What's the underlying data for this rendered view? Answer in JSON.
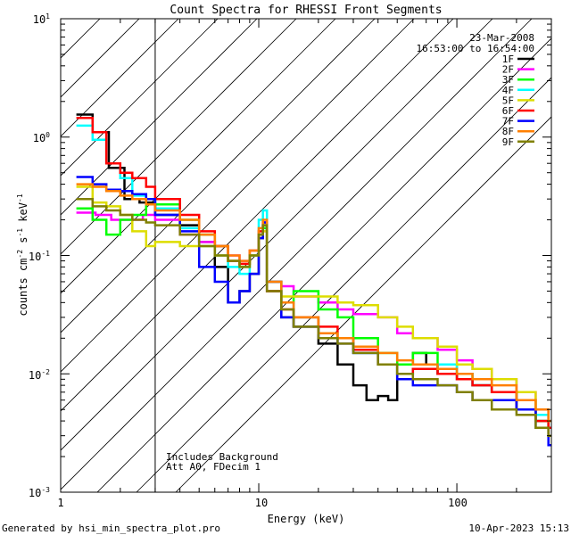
{
  "chart_data": {
    "type": "line",
    "title": "Count Spectra for RHESSI Front Segments",
    "xlabel": "Energy (keV)",
    "ylabel": "counts cm-2 s-1 keV-1",
    "ylabel_parts": {
      "base": "counts cm",
      "exp1": "-2",
      "mid": " s",
      "exp2": "-1",
      "tail": " keV",
      "exp3": "-1"
    },
    "xscale": "log",
    "yscale": "log",
    "xlim": [
      1,
      300
    ],
    "ylim": [
      0.001,
      10
    ],
    "x_ticks": [
      1,
      10,
      100
    ],
    "x_tick_labels": [
      "1",
      "10",
      "100"
    ],
    "y_ticks": [
      0.001,
      0.01,
      0.1,
      1,
      10
    ],
    "y_tick_labels": [
      {
        "base": "10",
        "exp": "-3"
      },
      {
        "base": "10",
        "exp": "-2"
      },
      {
        "base": "10",
        "exp": "-1"
      },
      {
        "base": "10",
        "exp": "0"
      },
      {
        "base": "10",
        "exp": "1"
      }
    ],
    "date": "23-Mar-2008",
    "time_range": "16:53:00 to 16:54:00",
    "hatched_region_kev": [
      1,
      3
    ],
    "annotations": [
      "Includes Background",
      "Att A0, FDecim 1"
    ],
    "legend_position": "top-right",
    "series": [
      {
        "name": "1F",
        "color": "#000000",
        "points": [
          [
            1.2,
            1.55
          ],
          [
            1.45,
            1.1
          ],
          [
            1.75,
            0.55
          ],
          [
            2.1,
            0.3
          ],
          [
            2.5,
            0.28
          ],
          [
            3.0,
            0.22
          ],
          [
            4,
            0.18
          ],
          [
            5,
            0.13
          ],
          [
            6,
            0.08
          ],
          [
            7,
            0.04
          ],
          [
            8,
            0.05
          ],
          [
            9,
            0.07
          ],
          [
            10,
            0.14
          ],
          [
            10.5,
            0.18
          ],
          [
            11,
            0.05
          ],
          [
            13,
            0.03
          ],
          [
            15,
            0.025
          ],
          [
            20,
            0.018
          ],
          [
            25,
            0.012
          ],
          [
            30,
            0.008
          ],
          [
            35,
            0.006
          ],
          [
            40,
            0.0065
          ],
          [
            45,
            0.006
          ],
          [
            50,
            0.012
          ],
          [
            60,
            0.015
          ],
          [
            70,
            0.012
          ],
          [
            80,
            0.01
          ],
          [
            100,
            0.009
          ],
          [
            120,
            0.008
          ],
          [
            150,
            0.007
          ],
          [
            200,
            0.005
          ],
          [
            250,
            0.004
          ],
          [
            290,
            0.003
          ]
        ]
      },
      {
        "name": "2F",
        "color": "#ff00ff",
        "points": [
          [
            1.2,
            0.23
          ],
          [
            1.5,
            0.22
          ],
          [
            1.8,
            0.2
          ],
          [
            2.2,
            0.2
          ],
          [
            2.6,
            0.22
          ],
          [
            3.0,
            0.2
          ],
          [
            4,
            0.15
          ],
          [
            5,
            0.13
          ],
          [
            6,
            0.12
          ],
          [
            7,
            0.1
          ],
          [
            8,
            0.09
          ],
          [
            9,
            0.1
          ],
          [
            10,
            0.15
          ],
          [
            10.5,
            0.16
          ],
          [
            11,
            0.06
          ],
          [
            13,
            0.055
          ],
          [
            15,
            0.045
          ],
          [
            20,
            0.04
          ],
          [
            25,
            0.035
          ],
          [
            30,
            0.032
          ],
          [
            40,
            0.03
          ],
          [
            50,
            0.022
          ],
          [
            60,
            0.02
          ],
          [
            80,
            0.016
          ],
          [
            100,
            0.013
          ],
          [
            120,
            0.011
          ],
          [
            150,
            0.009
          ],
          [
            200,
            0.007
          ],
          [
            250,
            0.005
          ],
          [
            290,
            0.004
          ]
        ]
      },
      {
        "name": "3F",
        "color": "#00ff00",
        "points": [
          [
            1.2,
            0.25
          ],
          [
            1.45,
            0.2
          ],
          [
            1.7,
            0.15
          ],
          [
            2.0,
            0.2
          ],
          [
            2.3,
            0.22
          ],
          [
            2.7,
            0.3
          ],
          [
            3.0,
            0.27
          ],
          [
            4,
            0.2
          ],
          [
            5,
            0.15
          ],
          [
            6,
            0.12
          ],
          [
            7,
            0.09
          ],
          [
            8,
            0.08
          ],
          [
            9,
            0.1
          ],
          [
            10,
            0.15
          ],
          [
            10.5,
            0.17
          ],
          [
            11,
            0.06
          ],
          [
            13,
            0.04
          ],
          [
            15,
            0.05
          ],
          [
            20,
            0.035
          ],
          [
            25,
            0.03
          ],
          [
            30,
            0.02
          ],
          [
            40,
            0.015
          ],
          [
            50,
            0.012
          ],
          [
            60,
            0.015
          ],
          [
            80,
            0.012
          ],
          [
            100,
            0.01
          ],
          [
            120,
            0.009
          ],
          [
            150,
            0.007
          ],
          [
            200,
            0.006
          ],
          [
            250,
            0.004
          ],
          [
            290,
            0.0035
          ]
        ]
      },
      {
        "name": "4F",
        "color": "#00ffff",
        "points": [
          [
            1.2,
            1.25
          ],
          [
            1.45,
            0.95
          ],
          [
            1.7,
            0.6
          ],
          [
            2.0,
            0.45
          ],
          [
            2.3,
            0.32
          ],
          [
            2.7,
            0.3
          ],
          [
            3.0,
            0.25
          ],
          [
            4,
            0.17
          ],
          [
            5,
            0.12
          ],
          [
            6,
            0.1
          ],
          [
            7,
            0.08
          ],
          [
            8,
            0.07
          ],
          [
            9,
            0.1
          ],
          [
            10,
            0.2
          ],
          [
            10.5,
            0.24
          ],
          [
            11,
            0.06
          ],
          [
            13,
            0.04
          ],
          [
            15,
            0.03
          ],
          [
            20,
            0.022
          ],
          [
            25,
            0.02
          ],
          [
            30,
            0.015
          ],
          [
            40,
            0.012
          ],
          [
            50,
            0.01
          ],
          [
            60,
            0.011
          ],
          [
            80,
            0.012
          ],
          [
            100,
            0.01
          ],
          [
            120,
            0.008
          ],
          [
            150,
            0.007
          ],
          [
            200,
            0.005
          ],
          [
            250,
            0.0045
          ],
          [
            290,
            0.004
          ]
        ]
      },
      {
        "name": "5F",
        "color": "#dddd00",
        "points": [
          [
            1.2,
            0.38
          ],
          [
            1.45,
            0.28
          ],
          [
            1.7,
            0.26
          ],
          [
            2.0,
            0.22
          ],
          [
            2.3,
            0.16
          ],
          [
            2.7,
            0.12
          ],
          [
            3.0,
            0.13
          ],
          [
            4,
            0.12
          ],
          [
            5,
            0.12
          ],
          [
            6,
            0.1
          ],
          [
            7,
            0.09
          ],
          [
            8,
            0.085
          ],
          [
            9,
            0.1
          ],
          [
            10,
            0.14
          ],
          [
            10.5,
            0.16
          ],
          [
            11,
            0.06
          ],
          [
            13,
            0.045
          ],
          [
            15,
            0.045
          ],
          [
            20,
            0.045
          ],
          [
            25,
            0.04
          ],
          [
            30,
            0.038
          ],
          [
            40,
            0.03
          ],
          [
            50,
            0.025
          ],
          [
            60,
            0.02
          ],
          [
            80,
            0.017
          ],
          [
            100,
            0.012
          ],
          [
            120,
            0.011
          ],
          [
            150,
            0.009
          ],
          [
            200,
            0.007
          ],
          [
            250,
            0.005
          ],
          [
            290,
            0.004
          ]
        ]
      },
      {
        "name": "6F",
        "color": "#ff0000",
        "points": [
          [
            1.2,
            1.45
          ],
          [
            1.45,
            1.1
          ],
          [
            1.7,
            0.6
          ],
          [
            2.0,
            0.5
          ],
          [
            2.3,
            0.45
          ],
          [
            2.7,
            0.38
          ],
          [
            3.0,
            0.3
          ],
          [
            4,
            0.22
          ],
          [
            5,
            0.16
          ],
          [
            6,
            0.12
          ],
          [
            7,
            0.09
          ],
          [
            8,
            0.085
          ],
          [
            9,
            0.11
          ],
          [
            10,
            0.16
          ],
          [
            10.5,
            0.19
          ],
          [
            11,
            0.05
          ],
          [
            13,
            0.035
          ],
          [
            15,
            0.03
          ],
          [
            20,
            0.025
          ],
          [
            25,
            0.02
          ],
          [
            30,
            0.016
          ],
          [
            40,
            0.012
          ],
          [
            50,
            0.01
          ],
          [
            60,
            0.011
          ],
          [
            80,
            0.01
          ],
          [
            100,
            0.009
          ],
          [
            120,
            0.008
          ],
          [
            150,
            0.007
          ],
          [
            200,
            0.005
          ],
          [
            250,
            0.004
          ],
          [
            290,
            0.0035
          ]
        ]
      },
      {
        "name": "7F",
        "color": "#0000ff",
        "points": [
          [
            1.2,
            0.46
          ],
          [
            1.45,
            0.4
          ],
          [
            1.7,
            0.36
          ],
          [
            2.0,
            0.35
          ],
          [
            2.3,
            0.33
          ],
          [
            2.7,
            0.3
          ],
          [
            3.0,
            0.22
          ],
          [
            4,
            0.16
          ],
          [
            5,
            0.08
          ],
          [
            6,
            0.06
          ],
          [
            7,
            0.04
          ],
          [
            8,
            0.05
          ],
          [
            9,
            0.07
          ],
          [
            10,
            0.14
          ],
          [
            10.5,
            0.19
          ],
          [
            11,
            0.06
          ],
          [
            13,
            0.03
          ],
          [
            15,
            0.025
          ],
          [
            20,
            0.02
          ],
          [
            25,
            0.018
          ],
          [
            30,
            0.015
          ],
          [
            40,
            0.012
          ],
          [
            50,
            0.009
          ],
          [
            60,
            0.008
          ],
          [
            80,
            0.008
          ],
          [
            100,
            0.007
          ],
          [
            120,
            0.006
          ],
          [
            150,
            0.006
          ],
          [
            200,
            0.005
          ],
          [
            250,
            0.0035
          ],
          [
            290,
            0.0025
          ]
        ]
      },
      {
        "name": "8F",
        "color": "#ff7f00",
        "points": [
          [
            1.2,
            0.4
          ],
          [
            1.45,
            0.38
          ],
          [
            1.7,
            0.35
          ],
          [
            2.0,
            0.32
          ],
          [
            2.3,
            0.3
          ],
          [
            2.7,
            0.27
          ],
          [
            3.0,
            0.24
          ],
          [
            4,
            0.2
          ],
          [
            5,
            0.15
          ],
          [
            6,
            0.12
          ],
          [
            7,
            0.1
          ],
          [
            8,
            0.09
          ],
          [
            9,
            0.11
          ],
          [
            10,
            0.17
          ],
          [
            10.5,
            0.2
          ],
          [
            11,
            0.06
          ],
          [
            13,
            0.04
          ],
          [
            15,
            0.03
          ],
          [
            20,
            0.022
          ],
          [
            25,
            0.02
          ],
          [
            30,
            0.017
          ],
          [
            40,
            0.015
          ],
          [
            50,
            0.013
          ],
          [
            60,
            0.012
          ],
          [
            80,
            0.011
          ],
          [
            100,
            0.01
          ],
          [
            120,
            0.009
          ],
          [
            150,
            0.008
          ],
          [
            200,
            0.006
          ],
          [
            250,
            0.005
          ],
          [
            290,
            0.004
          ]
        ]
      },
      {
        "name": "9F",
        "color": "#808000",
        "points": [
          [
            1.2,
            0.3
          ],
          [
            1.45,
            0.26
          ],
          [
            1.7,
            0.24
          ],
          [
            2.0,
            0.22
          ],
          [
            2.3,
            0.2
          ],
          [
            2.7,
            0.19
          ],
          [
            3.0,
            0.18
          ],
          [
            4,
            0.15
          ],
          [
            5,
            0.12
          ],
          [
            6,
            0.1
          ],
          [
            7,
            0.09
          ],
          [
            8,
            0.08
          ],
          [
            9,
            0.1
          ],
          [
            10,
            0.15
          ],
          [
            10.5,
            0.18
          ],
          [
            11,
            0.05
          ],
          [
            13,
            0.035
          ],
          [
            15,
            0.025
          ],
          [
            20,
            0.02
          ],
          [
            25,
            0.018
          ],
          [
            30,
            0.015
          ],
          [
            40,
            0.012
          ],
          [
            50,
            0.01
          ],
          [
            60,
            0.009
          ],
          [
            80,
            0.008
          ],
          [
            100,
            0.007
          ],
          [
            120,
            0.006
          ],
          [
            150,
            0.005
          ],
          [
            200,
            0.0045
          ],
          [
            250,
            0.0035
          ],
          [
            290,
            0.003
          ]
        ]
      }
    ]
  },
  "footer": {
    "generated_by": "Generated by hsi_min_spectra_plot.pro",
    "timestamp": "10-Apr-2023 15:13"
  }
}
